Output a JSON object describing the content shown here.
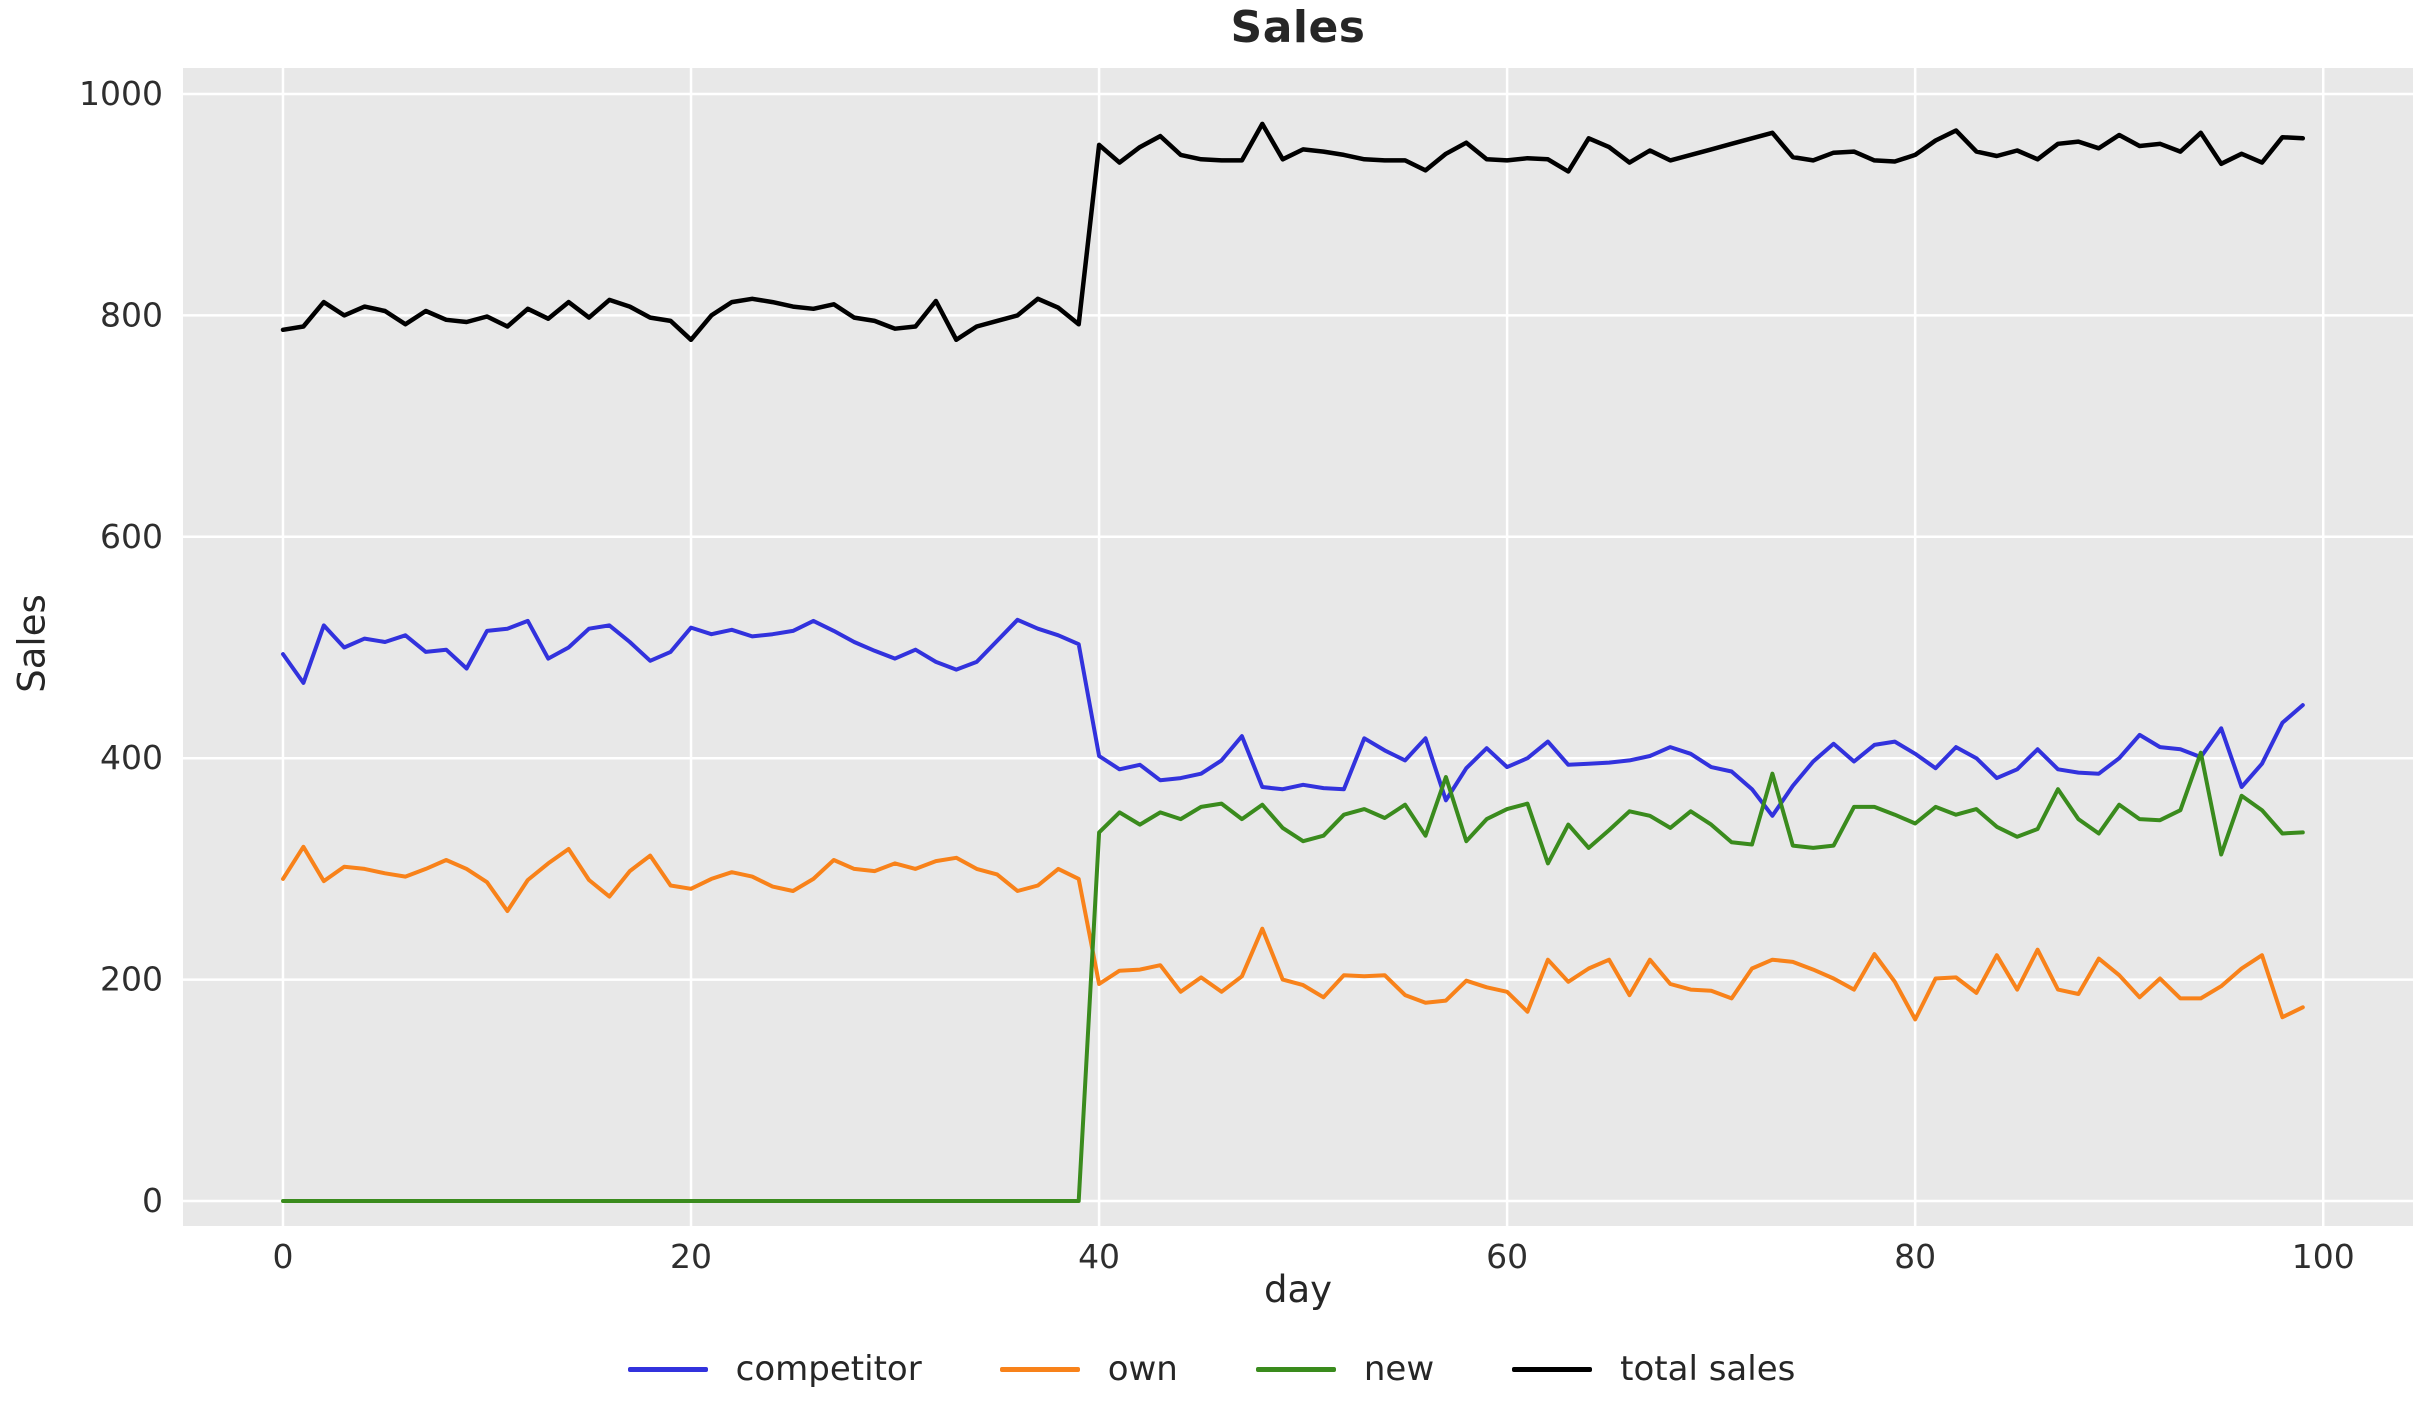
{
  "title": "Sales",
  "chart_data": {
    "type": "line",
    "title": "Sales",
    "xlabel": "day",
    "ylabel": "Sales",
    "x_ticks": [
      0,
      20,
      40,
      60,
      80,
      100
    ],
    "y_ticks": [
      0,
      200,
      400,
      600,
      800,
      1000
    ],
    "xlim": [
      -4.9,
      104.4
    ],
    "ylim": [
      -22.6,
      1023.5
    ],
    "grid": true,
    "grid_color": "#ffffff",
    "plot_background": "#e8e8e8",
    "legend_position": "bottom-center",
    "x": [
      0,
      1,
      2,
      3,
      4,
      5,
      6,
      7,
      8,
      9,
      10,
      11,
      12,
      13,
      14,
      15,
      16,
      17,
      18,
      19,
      20,
      21,
      22,
      23,
      24,
      25,
      26,
      27,
      28,
      29,
      30,
      31,
      32,
      33,
      34,
      35,
      36,
      37,
      38,
      39,
      40,
      41,
      42,
      43,
      44,
      45,
      46,
      47,
      48,
      49,
      50,
      51,
      52,
      53,
      54,
      55,
      56,
      57,
      58,
      59,
      60,
      61,
      62,
      63,
      64,
      65,
      66,
      67,
      68,
      69,
      70,
      71,
      72,
      73,
      74,
      75,
      76,
      77,
      78,
      79,
      80,
      81,
      82,
      83,
      84,
      85,
      86,
      87,
      88,
      89,
      90,
      91,
      92,
      93,
      94,
      95,
      96,
      97,
      98,
      99
    ],
    "series": [
      {
        "name": "competitor",
        "color": "#3232dd",
        "line_width": 4,
        "values": [
          494,
          468,
          520,
          500,
          508,
          505,
          511,
          496,
          498,
          481,
          515,
          517,
          524,
          490,
          500,
          517,
          520,
          505,
          488,
          496,
          518,
          512,
          516,
          510,
          512,
          515,
          524,
          515,
          505,
          497,
          490,
          498,
          487,
          480,
          487,
          506,
          525,
          517,
          511,
          503,
          402,
          390,
          394,
          380,
          382,
          386,
          398,
          420,
          374,
          372,
          376,
          373,
          372,
          418,
          407,
          398,
          418,
          362,
          391,
          409,
          392,
          400,
          415,
          394,
          395,
          396,
          398,
          402,
          410,
          404,
          392,
          388,
          372,
          348,
          375,
          397,
          413,
          397,
          412,
          415,
          404,
          391,
          410,
          400,
          382,
          390,
          408,
          390,
          387,
          386,
          400,
          421,
          410,
          408,
          401,
          427,
          374,
          395,
          432,
          448
        ]
      },
      {
        "name": "own",
        "color": "#f8821a",
        "line_width": 4,
        "values": [
          291,
          320,
          289,
          302,
          300,
          296,
          293,
          300,
          308,
          300,
          288,
          262,
          290,
          305,
          318,
          290,
          275,
          298,
          312,
          285,
          282,
          291,
          297,
          293,
          284,
          280,
          291,
          308,
          300,
          298,
          305,
          300,
          307,
          310,
          300,
          295,
          280,
          285,
          300,
          291,
          196,
          208,
          209,
          213,
          189,
          202,
          189,
          203,
          246,
          200,
          195,
          184,
          204,
          203,
          204,
          186,
          179,
          181,
          199,
          193,
          189,
          171,
          218,
          198,
          210,
          218,
          186,
          218,
          196,
          191,
          190,
          183,
          210,
          218,
          216,
          209,
          201,
          191,
          223,
          198,
          164,
          201,
          202,
          188,
          222,
          191,
          227,
          191,
          187,
          219,
          204,
          184,
          201,
          183,
          183,
          194,
          210,
          222,
          166,
          175
        ]
      },
      {
        "name": "new",
        "color": "#3a8b1d",
        "line_width": 4,
        "values": [
          0,
          0,
          0,
          0,
          0,
          0,
          0,
          0,
          0,
          0,
          0,
          0,
          0,
          0,
          0,
          0,
          0,
          0,
          0,
          0,
          0,
          0,
          0,
          0,
          0,
          0,
          0,
          0,
          0,
          0,
          0,
          0,
          0,
          0,
          0,
          0,
          0,
          0,
          0,
          0,
          333,
          351,
          340,
          351,
          345,
          356,
          359,
          345,
          358,
          337,
          325,
          330,
          349,
          354,
          346,
          358,
          330,
          383,
          325,
          345,
          354,
          359,
          305,
          340,
          319,
          335,
          352,
          348,
          337,
          352,
          340,
          324,
          322,
          386,
          321,
          319,
          321,
          356,
          356,
          349,
          341,
          356,
          349,
          354,
          338,
          329,
          336,
          372,
          345,
          332,
          358,
          345,
          344,
          353,
          405,
          313,
          366,
          353,
          332,
          333
        ]
      },
      {
        "name": "total sales",
        "color": "#000000",
        "line_width": 4.5,
        "values": [
          787,
          790,
          812,
          800,
          808,
          804,
          792,
          804,
          796,
          794,
          799,
          790,
          806,
          797,
          812,
          798,
          814,
          808,
          798,
          795,
          778,
          800,
          812,
          815,
          812,
          808,
          806,
          810,
          798,
          795,
          788,
          790,
          813,
          778,
          790,
          795,
          800,
          815,
          807,
          792,
          954,
          938,
          952,
          962,
          945,
          941,
          940,
          940,
          973,
          941,
          950,
          948,
          945,
          941,
          940,
          940,
          931,
          946,
          956,
          941,
          940,
          942,
          941,
          930,
          960,
          952,
          938,
          949,
          940,
          945,
          950,
          955,
          960,
          965,
          943,
          940,
          947,
          948,
          940,
          939,
          945,
          958,
          967,
          948,
          944,
          949,
          941,
          955,
          957,
          951,
          963,
          953,
          955,
          948,
          965,
          937,
          946,
          938,
          961,
          960
        ]
      }
    ]
  }
}
